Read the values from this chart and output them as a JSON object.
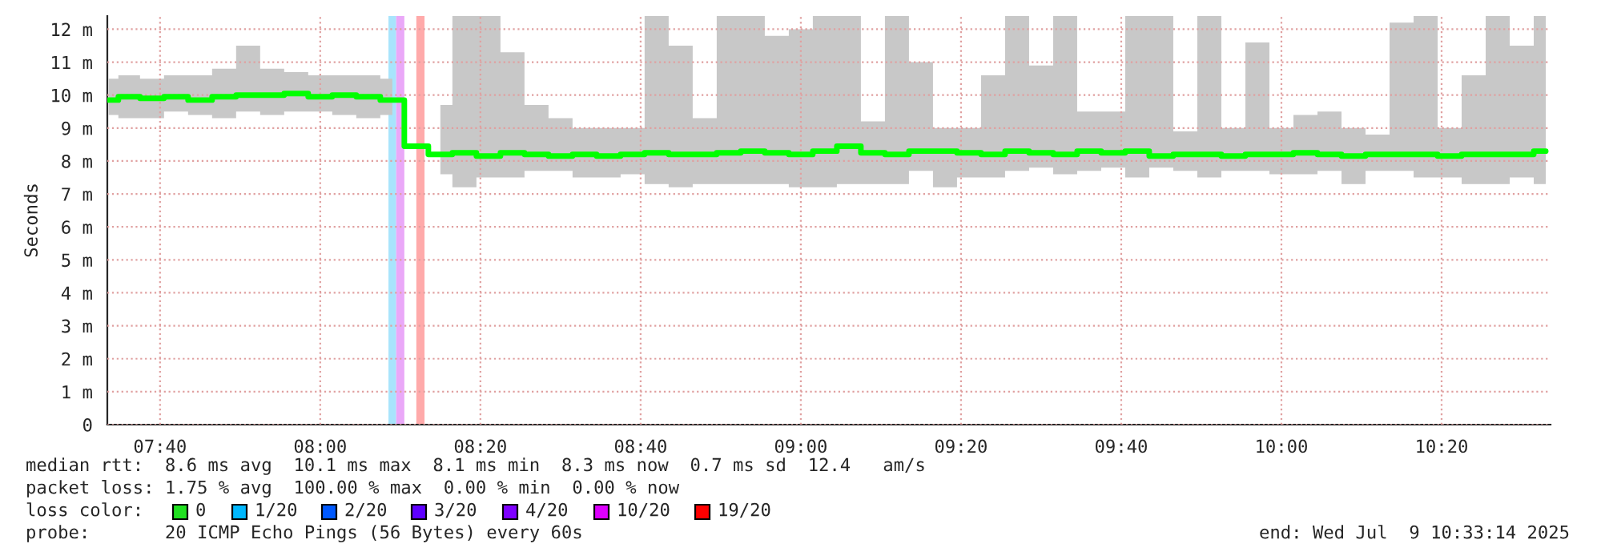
{
  "chart_data": {
    "type": "step",
    "ylabel": "Seconds",
    "xlim": [
      7.557,
      10.56
    ],
    "ylim": [
      0,
      12.4
    ],
    "xticks": [
      {
        "value": 7.6667,
        "label": "07:40"
      },
      {
        "value": 8.0,
        "label": "08:00"
      },
      {
        "value": 8.3333,
        "label": "08:20"
      },
      {
        "value": 8.6667,
        "label": "08:40"
      },
      {
        "value": 9.0,
        "label": "09:00"
      },
      {
        "value": 9.3333,
        "label": "09:20"
      },
      {
        "value": 9.6667,
        "label": "09:40"
      },
      {
        "value": 10.0,
        "label": "10:00"
      },
      {
        "value": 10.3333,
        "label": "10:20"
      }
    ],
    "yticks": [
      0,
      {
        "value": 1,
        "label": "1 m"
      },
      {
        "value": 2,
        "label": "2 m"
      },
      {
        "value": 3,
        "label": "3 m"
      },
      {
        "value": 4,
        "label": "4 m"
      },
      {
        "value": 5,
        "label": "5 m"
      },
      {
        "value": 6,
        "label": "6 m"
      },
      {
        "value": 7,
        "label": "7 m"
      },
      {
        "value": 8,
        "label": "8 m"
      },
      {
        "value": 9,
        "label": "9 m"
      },
      {
        "value": 10,
        "label": "10 m"
      },
      {
        "value": 11,
        "label": "11 m"
      },
      {
        "value": 12,
        "label": "12 m"
      }
    ],
    "grid": true,
    "x": [
      7.56,
      7.6,
      7.65,
      7.7,
      7.75,
      7.8,
      7.85,
      7.9,
      7.95,
      8.0,
      8.05,
      8.1,
      8.15,
      8.2,
      8.25,
      8.3,
      8.35,
      8.4,
      8.45,
      8.5,
      8.55,
      8.6,
      8.65,
      8.7,
      8.75,
      8.8,
      8.85,
      8.9,
      8.95,
      9.0,
      9.05,
      9.1,
      9.15,
      9.2,
      9.25,
      9.3,
      9.35,
      9.4,
      9.45,
      9.5,
      9.55,
      9.6,
      9.65,
      9.7,
      9.75,
      9.8,
      9.85,
      9.9,
      9.95,
      10.0,
      10.05,
      10.1,
      10.15,
      10.2,
      10.25,
      10.3,
      10.35,
      10.4,
      10.45,
      10.5,
      10.55
    ],
    "series": [
      {
        "color": "#00ff00",
        "values": [
          9.85,
          9.95,
          9.9,
          9.95,
          9.85,
          9.95,
          10.0,
          10.0,
          10.05,
          9.95,
          10.0,
          9.95,
          9.85,
          8.45,
          8.2,
          8.25,
          8.15,
          8.25,
          8.2,
          8.15,
          8.2,
          8.15,
          8.2,
          8.25,
          8.2,
          8.2,
          8.25,
          8.3,
          8.25,
          8.2,
          8.3,
          8.45,
          8.25,
          8.2,
          8.3,
          8.3,
          8.25,
          8.2,
          8.3,
          8.25,
          8.2,
          8.3,
          8.25,
          8.3,
          8.15,
          8.2,
          8.2,
          8.15,
          8.2,
          8.2,
          8.25,
          8.2,
          8.15,
          8.2,
          8.2,
          8.2,
          8.15,
          8.2,
          8.2,
          8.2,
          8.3
        ],
        "upper": [
          10.5,
          10.6,
          10.5,
          10.6,
          10.6,
          10.8,
          11.5,
          10.8,
          10.7,
          10.6,
          10.6,
          10.6,
          10.5,
          null,
          9.7,
          12.4,
          12.4,
          11.3,
          9.7,
          9.3,
          9.0,
          9.0,
          9.0,
          12.4,
          11.5,
          9.3,
          12.4,
          12.4,
          11.8,
          12.0,
          12.4,
          12.4,
          9.2,
          12.4,
          11.0,
          9.0,
          9.0,
          10.6,
          12.4,
          10.9,
          12.4,
          9.5,
          9.5,
          12.4,
          12.4,
          8.9,
          12.4,
          9.0,
          11.6,
          9.0,
          9.4,
          9.5,
          9.0,
          8.8,
          12.2,
          12.4,
          9.0,
          10.6,
          12.4,
          11.5,
          12.4
        ],
        "lower": [
          9.4,
          9.3,
          9.3,
          9.5,
          9.4,
          9.3,
          9.5,
          9.4,
          9.5,
          9.5,
          9.4,
          9.3,
          9.4,
          null,
          7.6,
          7.2,
          7.5,
          7.5,
          7.7,
          7.7,
          7.5,
          7.5,
          7.6,
          7.3,
          7.2,
          7.3,
          7.3,
          7.3,
          7.3,
          7.2,
          7.2,
          7.3,
          7.3,
          7.3,
          7.7,
          7.2,
          7.5,
          7.5,
          7.7,
          7.8,
          7.6,
          7.7,
          7.8,
          7.5,
          7.8,
          7.7,
          7.5,
          7.7,
          7.7,
          7.6,
          7.6,
          7.7,
          7.3,
          7.7,
          7.7,
          7.5,
          7.5,
          7.3,
          7.3,
          7.5,
          7.3
        ]
      }
    ],
    "bands": [
      {
        "axis": "x",
        "from": 8.142,
        "to": 8.158,
        "color": "#a8e4fc"
      },
      {
        "axis": "x",
        "from": 8.158,
        "to": 8.175,
        "color": "#eaa8f8"
      },
      {
        "axis": "x",
        "from": 8.2,
        "to": 8.217,
        "color": "#ffaaaa"
      }
    ],
    "annotations": [
      "median rtt:  8.6 ms avg  10.1 ms max  8.1 ms min  8.3 ms now  0.7 ms sd  12.4   am/s",
      "packet loss: 1.75 % avg  100.00 % max  0.00 % min  0.00 % now",
      "loss color:",
      "0",
      "1/20",
      "2/20",
      "3/20",
      "4/20",
      "10/20",
      "19/20",
      "probe:       20 ICMP Echo Pings (56 Bytes) every 60s",
      "end: Wed Jul  9 10:33:14 2025"
    ]
  }
}
